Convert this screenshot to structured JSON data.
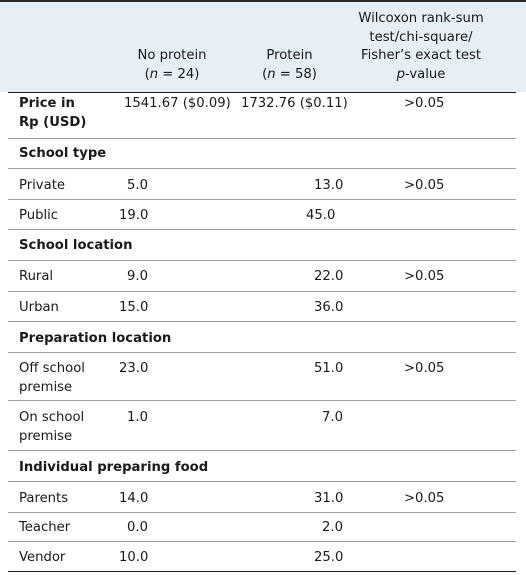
{
  "header": {
    "col_no_protein": {
      "label": "No protein",
      "n_prefix": "(",
      "n_var": "n",
      "n_value": " = 24)"
    },
    "col_protein": {
      "label": "Protein",
      "n_prefix": "(",
      "n_var": "n",
      "n_value": " = 58)"
    },
    "col_test": {
      "line1": "Wilcoxon rank-sum",
      "line2": "test/chi-square/",
      "line3": "Fisher’s exact test",
      "p_var": "p",
      "p_rest": "-value"
    }
  },
  "rows": {
    "price": {
      "label_line1": "Price in",
      "label_line2": "Rp (USD)",
      "no_protein": "1541.67 ($0.09)",
      "protein": "1732.76 ($0.11)",
      "p": ">0.05"
    },
    "school_type": {
      "heading": "School type"
    },
    "private": {
      "label": "Private",
      "no_protein": "5.0",
      "protein": "13.0",
      "p": ">0.05"
    },
    "public": {
      "label": "Public",
      "no_protein": "19.0",
      "protein": "45.0"
    },
    "school_location": {
      "heading": "School location"
    },
    "rural": {
      "label": "Rural",
      "no_protein": "9.0",
      "protein": "22.0",
      "p": ">0.05"
    },
    "urban": {
      "label": "Urban",
      "no_protein": "15.0",
      "protein": "36.0"
    },
    "prep_location": {
      "heading": "Preparation location"
    },
    "off_school": {
      "label_line1": "Off school",
      "label_line2": "premise",
      "no_protein": "23.0",
      "protein": "51.0",
      "p": ">0.05"
    },
    "on_school": {
      "label_line1": "On school",
      "label_line2": "premise",
      "no_protein": "1.0",
      "protein": "7.0"
    },
    "individual": {
      "heading": "Individual preparing food"
    },
    "parents": {
      "label": "Parents",
      "no_protein": "14.0",
      "protein": "31.0",
      "p": ">0.05"
    },
    "teacher": {
      "label": "Teacher",
      "no_protein": "0.0",
      "protein": "2.0"
    },
    "vendor": {
      "label": "Vendor",
      "no_protein": "10.0",
      "protein": "25.0"
    }
  }
}
